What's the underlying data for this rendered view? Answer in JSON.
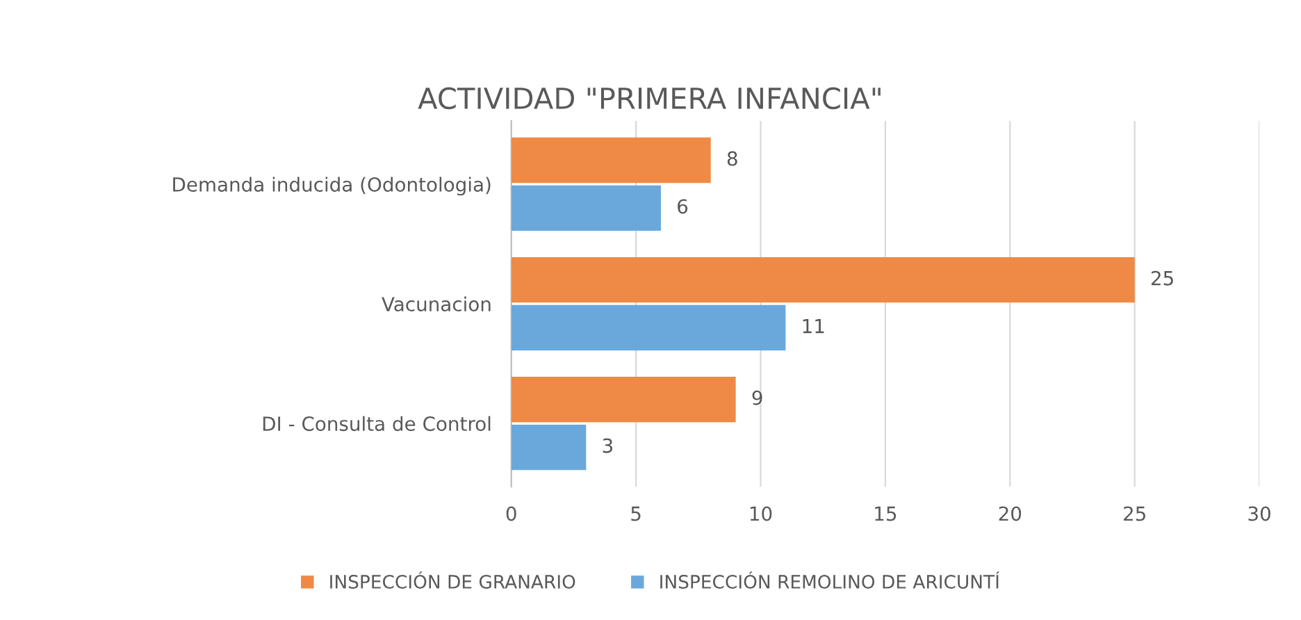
{
  "chart_data": {
    "type": "bar",
    "orientation": "horizontal",
    "title": "ACTIVIDAD \"PRIMERA INFANCIA\"",
    "categories": [
      "Demanda inducida (Odontologia)",
      "Vacunacion",
      "DI - Consulta de Control"
    ],
    "series": [
      {
        "name": "INSPECCIÓN DE GRANARIO",
        "color": "#ee8a45",
        "values": [
          8,
          25,
          9
        ]
      },
      {
        "name": "INSPECCIÓN REMOLINO DE ARICUNTÍ",
        "color": "#6aa8dc",
        "values": [
          6,
          11,
          3
        ]
      }
    ],
    "xlim": [
      0,
      30
    ],
    "xticks": [
      0,
      5,
      10,
      15,
      20,
      25,
      30
    ],
    "grid": "x",
    "legend": "bottom",
    "data_labels": true
  }
}
